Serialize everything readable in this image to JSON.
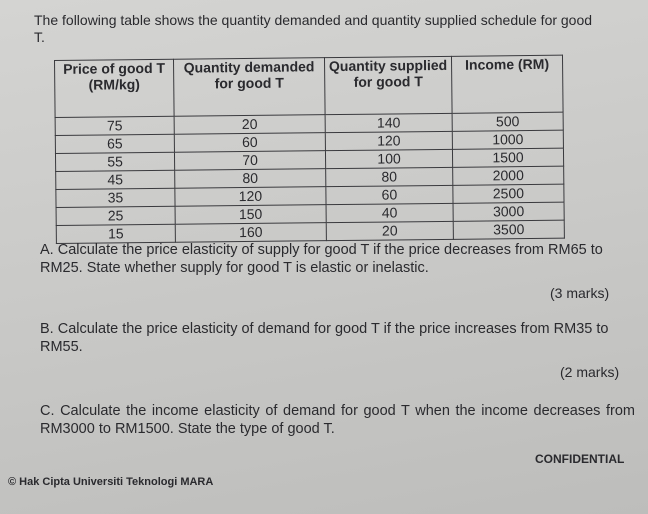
{
  "intro": "The following table shows the quantity demanded and quantity supplied schedule for good T.",
  "table": {
    "headers": [
      "Price of good T (RM/kg)",
      "Quantity demanded for good T",
      "Quantity supplied for good T",
      "Income (RM)"
    ],
    "rows": [
      [
        "75",
        "20",
        "140",
        "500"
      ],
      [
        "65",
        "60",
        "120",
        "1000"
      ],
      [
        "55",
        "70",
        "100",
        "1500"
      ],
      [
        "45",
        "80",
        "80",
        "2000"
      ],
      [
        "35",
        "120",
        "60",
        "2500"
      ],
      [
        "25",
        "150",
        "40",
        "3000"
      ],
      [
        "15",
        "160",
        "20",
        "3500"
      ]
    ]
  },
  "questions": [
    {
      "text": "A. Calculate the price elasticity of supply for good T if the price decreases from RM65 to RM25. State whether supply for good T is elastic or inelastic.",
      "marks": "(3 marks)"
    },
    {
      "text": "B. Calculate the price elasticity of demand for good T if the price increases from RM35 to RM55.",
      "marks": "(2 marks)"
    },
    {
      "text": "C. Calculate the income elasticity of demand for good T when the income decreases from RM3000 to RM1500. State the type of good T.",
      "marks": ""
    }
  ],
  "footer": {
    "copyright": "© Hak Cipta Universiti Teknologi MARA",
    "label": "CONFIDENTIAL"
  }
}
